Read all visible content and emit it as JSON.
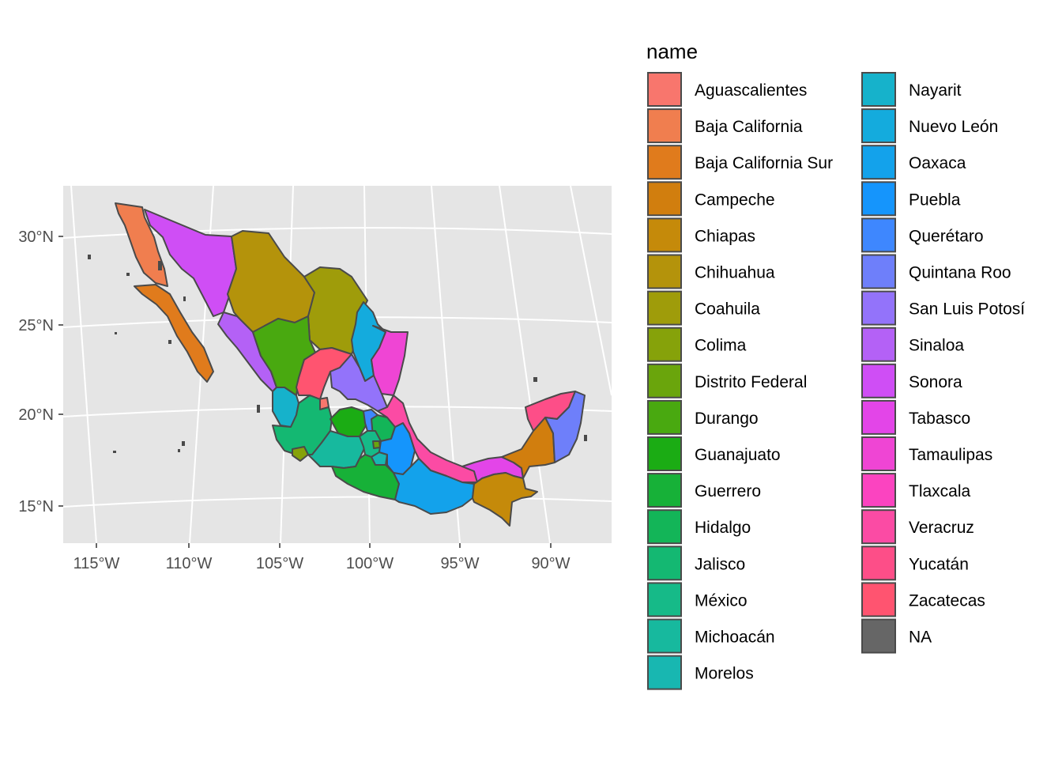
{
  "map": {
    "y_ticks": [
      "30°N",
      "25°N",
      "20°N",
      "15°N"
    ],
    "x_ticks": [
      "115°W",
      "110°W",
      "105°W",
      "100°W",
      "95°W",
      "90°W"
    ],
    "colors": {
      "panel": "#e5e5e5",
      "grid": "#ffffff",
      "border": "#4a4a4a"
    }
  },
  "legend": {
    "title": "name",
    "items": [
      {
        "label": "Aguascalientes",
        "color": "#F8766D"
      },
      {
        "label": "Baja California",
        "color": "#F07E4F"
      },
      {
        "label": "Baja California Sur",
        "color": "#E07B1C"
      },
      {
        "label": "Campeche",
        "color": "#D17E0E"
      },
      {
        "label": "Chiapas",
        "color": "#C58A0A"
      },
      {
        "label": "Chihuahua",
        "color": "#B4930B"
      },
      {
        "label": "Coahuila",
        "color": "#9F9C0A"
      },
      {
        "label": "Colima",
        "color": "#86A20A"
      },
      {
        "label": "Distrito Federal",
        "color": "#6AA50C"
      },
      {
        "label": "Durango",
        "color": "#49A910"
      },
      {
        "label": "Guanajuato",
        "color": "#1BAC14"
      },
      {
        "label": "Guerrero",
        "color": "#17B138"
      },
      {
        "label": "Hidalgo",
        "color": "#13B558"
      },
      {
        "label": "Jalisco",
        "color": "#14B872"
      },
      {
        "label": "México",
        "color": "#16BA88"
      },
      {
        "label": "Michoacán",
        "color": "#17B99E"
      },
      {
        "label": "Morelos",
        "color": "#18B7B1"
      },
      {
        "label": "Nayarit",
        "color": "#16B2CB"
      },
      {
        "label": "Nuevo León",
        "color": "#14ABDD"
      },
      {
        "label": "Oaxaca",
        "color": "#13A2EB"
      },
      {
        "label": "Puebla",
        "color": "#1595FC"
      },
      {
        "label": "Querétaro",
        "color": "#3E87FE"
      },
      {
        "label": "Quintana Roo",
        "color": "#6E7FFA"
      },
      {
        "label": "San Luis Potosí",
        "color": "#9373FA"
      },
      {
        "label": "Sinaloa",
        "color": "#B461F6"
      },
      {
        "label": "Sonora",
        "color": "#CF4EF5"
      },
      {
        "label": "Tabasco",
        "color": "#E345E8"
      },
      {
        "label": "Tamaulipas",
        "color": "#EF45D4"
      },
      {
        "label": "Tlaxcala",
        "color": "#FB44C0"
      },
      {
        "label": "Veracruz",
        "color": "#FB4BA4"
      },
      {
        "label": "Yucatán",
        "color": "#FD4E88"
      },
      {
        "label": "Zacatecas",
        "color": "#FF5470"
      },
      {
        "label": "NA",
        "color": "#666666"
      }
    ]
  }
}
